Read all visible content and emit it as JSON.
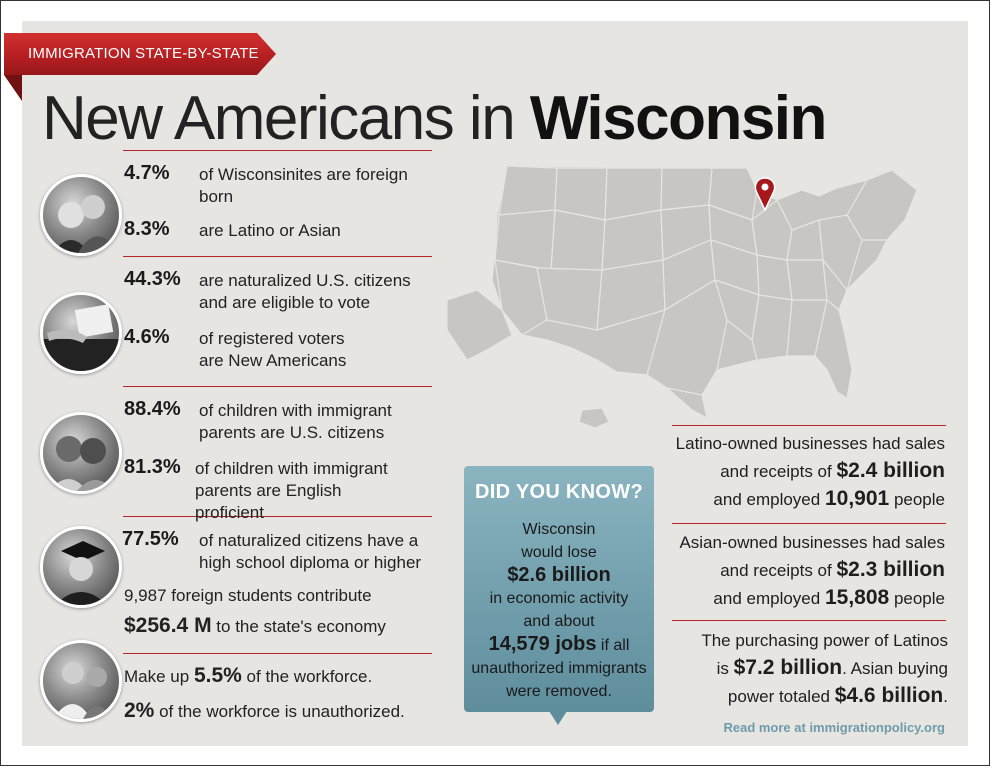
{
  "banner": {
    "label": "IMMIGRATION STATE-BY-STATE"
  },
  "title": {
    "prefix": "New Americans in",
    "state": "Wisconsin"
  },
  "stats": [
    {
      "pct": "4.7%",
      "text": "of Wisconsinites are foreign born"
    },
    {
      "pct": "8.3%",
      "text": "are Latino or Asian"
    },
    {
      "pct": "44.3%",
      "text": "are naturalized U.S. citizens and are eligible to vote"
    },
    {
      "pct": "4.6%",
      "text": "of registered voters are New Americans"
    },
    {
      "pct": "88.4%",
      "text": "of children with immigrant parents are U.S. citizens"
    },
    {
      "pct": "81.3%",
      "text": "of children with immigrant parents are English proficient"
    },
    {
      "pct": "77.5%",
      "text": "of naturalized citizens have a high school diploma or higher"
    }
  ],
  "students": {
    "line": "9,987 foreign students contribute",
    "amount": "$256.4 M",
    "tail": "to the state's economy"
  },
  "workforce": {
    "pre": "Make up",
    "share": "5.5%",
    "post": "of the workforce.",
    "unauth_pct": "2%",
    "unauth_text": "of the workforce is unauthorized."
  },
  "did_you_know": {
    "heading": "DID YOU KNOW?",
    "line1": "Wisconsin",
    "line2": "would lose",
    "amount": "$2.6 billion",
    "line3": "in economic activity",
    "line4": "and about",
    "jobs": "14,579 jobs",
    "jobs_tail": "if all",
    "line5": "unauthorized immigrants",
    "line6": "were removed."
  },
  "latino_business": {
    "line1": "Latino-owned businesses had sales",
    "line2a": "and receipts of",
    "sales": "$2.4 billion",
    "line3a": "and employed",
    "employed": "10,901",
    "line3b": "people"
  },
  "asian_business": {
    "line1": "Asian-owned businesses had sales",
    "line2a": "and receipts of",
    "sales": "$2.3 billion",
    "line3a": "and employed",
    "employed": "15,808",
    "line3b": "people"
  },
  "purchasing": {
    "line1": "The purchasing power of Latinos",
    "line2a": "is",
    "latino": "$7.2 billion",
    "line2b": ". Asian buying",
    "line3a": "power totaled",
    "asian": "$4.6 billion",
    "line3b": "."
  },
  "footer": {
    "readmore": "Read more at immigrationpolicy.org"
  },
  "colors": {
    "accent_red": "#b0272a",
    "dyk_teal": "#6f9bab",
    "panel_bg": "#e6e5e1"
  },
  "icons": [
    "map-pin-icon"
  ]
}
